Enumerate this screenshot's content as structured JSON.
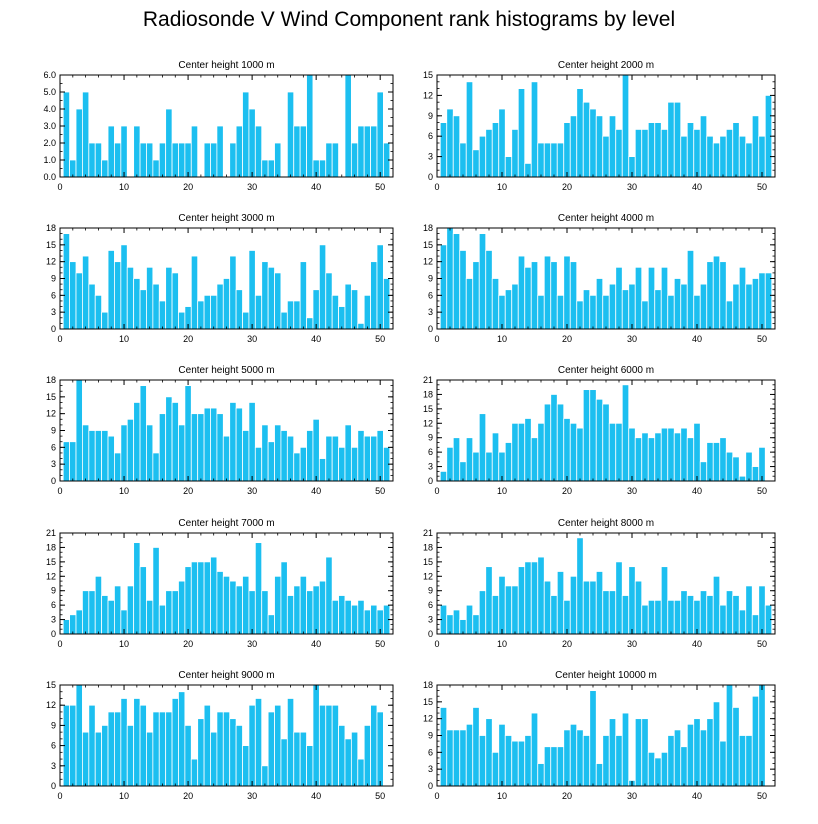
{
  "title": "Radiosonde V Wind Component rank histograms by level",
  "colors": {
    "bar": "#1CBFF0",
    "bar_edge": "#FFFFFF",
    "axis": "#000000"
  },
  "chart_data": [
    {
      "type": "bar",
      "title": "Center height 1000 m",
      "xlim": [
        0,
        52
      ],
      "ylim": [
        0,
        6
      ],
      "xticks": [
        0,
        10,
        20,
        30,
        40,
        50
      ],
      "yticks": [
        0,
        1,
        2,
        3,
        4,
        5,
        6
      ],
      "ytick_labels": [
        "0.0",
        "1.0",
        "2.0",
        "3.0",
        "4.0",
        "5.0",
        "6.0"
      ],
      "values": [
        5,
        1,
        4,
        5,
        2,
        2,
        1,
        3,
        2,
        3,
        0,
        3,
        2,
        2,
        1,
        2,
        4,
        2,
        2,
        2,
        3,
        0,
        2,
        2,
        3,
        0,
        2,
        3,
        5,
        4,
        3,
        1,
        1,
        2,
        0,
        5,
        3,
        3,
        6,
        1,
        1,
        2,
        2,
        0,
        6,
        2,
        3,
        3,
        3,
        5,
        2
      ]
    },
    {
      "type": "bar",
      "title": "Center height 2000 m",
      "xlim": [
        0,
        52
      ],
      "ylim": [
        0,
        15
      ],
      "xticks": [
        0,
        10,
        20,
        30,
        40,
        50
      ],
      "yticks": [
        0,
        3,
        6,
        9,
        12,
        15
      ],
      "ytick_labels": [
        "0",
        "3",
        "6",
        "9",
        "12",
        "15"
      ],
      "values": [
        8,
        10,
        9,
        5,
        14,
        4,
        6,
        7,
        8,
        10,
        3,
        7,
        13,
        2,
        14,
        5,
        5,
        5,
        5,
        8,
        9,
        13,
        11,
        10,
        9,
        6,
        9,
        7,
        15,
        3,
        7,
        7,
        8,
        8,
        7,
        11,
        11,
        6,
        8,
        7,
        9,
        6,
        5,
        6,
        7,
        8,
        6,
        5,
        9,
        6,
        12
      ]
    },
    {
      "type": "bar",
      "title": "Center height 3000 m",
      "xlim": [
        0,
        52
      ],
      "ylim": [
        0,
        18
      ],
      "xticks": [
        0,
        10,
        20,
        30,
        40,
        50
      ],
      "yticks": [
        0,
        3,
        6,
        9,
        12,
        15,
        18
      ],
      "ytick_labels": [
        "0",
        "3",
        "6",
        "9",
        "12",
        "15",
        "18"
      ],
      "values": [
        17,
        12,
        10,
        13,
        8,
        6,
        3,
        14,
        12,
        15,
        11,
        9,
        7,
        11,
        8,
        5,
        11,
        10,
        3,
        4,
        13,
        5,
        6,
        6,
        8,
        9,
        13,
        7,
        3,
        14,
        6,
        12,
        11,
        10,
        3,
        5,
        5,
        12,
        2,
        7,
        15,
        10,
        6,
        4,
        8,
        7,
        1,
        6,
        12,
        15,
        9
      ]
    },
    {
      "type": "bar",
      "title": "Center height 4000 m",
      "xlim": [
        0,
        52
      ],
      "ylim": [
        0,
        18
      ],
      "xticks": [
        0,
        10,
        20,
        30,
        40,
        50
      ],
      "yticks": [
        0,
        3,
        6,
        9,
        12,
        15,
        18
      ],
      "ytick_labels": [
        "0",
        "3",
        "6",
        "9",
        "12",
        "15",
        "18"
      ],
      "values": [
        15,
        18,
        17,
        14,
        9,
        12,
        17,
        14,
        9,
        6,
        7,
        8,
        13,
        11,
        12,
        6,
        13,
        12,
        6,
        13,
        12,
        5,
        7,
        6,
        9,
        6,
        8,
        11,
        7,
        8,
        11,
        5,
        11,
        7,
        11,
        6,
        9,
        8,
        14,
        6,
        8,
        12,
        13,
        12,
        5,
        8,
        11,
        8,
        9,
        10,
        10
      ]
    },
    {
      "type": "bar",
      "title": "Center height 5000 m",
      "xlim": [
        0,
        52
      ],
      "ylim": [
        0,
        18
      ],
      "xticks": [
        0,
        10,
        20,
        30,
        40,
        50
      ],
      "yticks": [
        0,
        3,
        6,
        9,
        12,
        15,
        18
      ],
      "ytick_labels": [
        "0",
        "3",
        "6",
        "9",
        "12",
        "15",
        "18"
      ],
      "values": [
        7,
        7,
        18,
        10,
        9,
        9,
        9,
        8,
        5,
        10,
        11,
        14,
        17,
        10,
        5,
        12,
        15,
        14,
        10,
        17,
        12,
        12,
        13,
        13,
        12,
        8,
        14,
        13,
        9,
        14,
        6,
        10,
        7,
        10,
        9,
        8,
        5,
        6,
        9,
        11,
        4,
        8,
        8,
        6,
        10,
        6,
        9,
        8,
        8,
        9,
        6
      ]
    },
    {
      "type": "bar",
      "title": "Center height 6000 m",
      "xlim": [
        0,
        52
      ],
      "ylim": [
        0,
        21
      ],
      "xticks": [
        0,
        10,
        20,
        30,
        40,
        50
      ],
      "yticks": [
        0,
        3,
        6,
        9,
        12,
        15,
        18,
        21
      ],
      "ytick_labels": [
        "0",
        "3",
        "6",
        "9",
        "12",
        "15",
        "18",
        "21"
      ],
      "values": [
        2,
        7,
        9,
        4,
        9,
        6,
        14,
        6,
        10,
        6,
        8,
        12,
        12,
        13,
        9,
        12,
        16,
        18,
        16,
        13,
        12,
        11,
        19,
        19,
        17,
        16,
        12,
        12,
        20,
        11,
        9,
        10,
        9,
        10,
        11,
        11,
        10,
        11,
        9,
        12,
        4,
        8,
        8,
        9,
        6,
        5,
        1,
        6,
        3,
        7,
        0
      ]
    },
    {
      "type": "bar",
      "title": "Center height 7000 m",
      "xlim": [
        0,
        52
      ],
      "ylim": [
        0,
        21
      ],
      "xticks": [
        0,
        10,
        20,
        30,
        40,
        50
      ],
      "yticks": [
        0,
        3,
        6,
        9,
        12,
        15,
        18,
        21
      ],
      "ytick_labels": [
        "0",
        "3",
        "6",
        "9",
        "12",
        "15",
        "18",
        "21"
      ],
      "values": [
        3,
        4,
        5,
        9,
        9,
        12,
        8,
        7,
        10,
        5,
        10,
        19,
        14,
        7,
        18,
        6,
        9,
        9,
        11,
        14,
        15,
        15,
        15,
        16,
        13,
        12,
        11,
        10,
        12,
        9,
        19,
        9,
        4,
        12,
        15,
        8,
        10,
        12,
        9,
        10,
        11,
        16,
        7,
        8,
        7,
        6,
        7,
        5,
        6,
        5,
        6
      ]
    },
    {
      "type": "bar",
      "title": "Center height 8000 m",
      "xlim": [
        0,
        52
      ],
      "ylim": [
        0,
        21
      ],
      "xticks": [
        0,
        10,
        20,
        30,
        40,
        50
      ],
      "yticks": [
        0,
        3,
        6,
        9,
        12,
        15,
        18,
        21
      ],
      "ytick_labels": [
        "0",
        "3",
        "6",
        "9",
        "12",
        "15",
        "18",
        "21"
      ],
      "values": [
        6,
        4,
        5,
        3,
        6,
        4,
        9,
        14,
        8,
        12,
        10,
        10,
        14,
        15,
        15,
        16,
        11,
        8,
        13,
        7,
        12,
        20,
        11,
        11,
        13,
        9,
        9,
        15,
        8,
        14,
        11,
        6,
        7,
        7,
        14,
        7,
        7,
        9,
        8,
        7,
        9,
        8,
        12,
        6,
        9,
        8,
        5,
        10,
        4,
        10,
        6
      ]
    },
    {
      "type": "bar",
      "title": "Center height 9000 m",
      "xlim": [
        0,
        52
      ],
      "ylim": [
        0,
        15
      ],
      "xticks": [
        0,
        10,
        20,
        30,
        40,
        50
      ],
      "yticks": [
        0,
        3,
        6,
        9,
        12,
        15
      ],
      "ytick_labels": [
        "0",
        "3",
        "6",
        "9",
        "12",
        "15"
      ],
      "values": [
        12,
        12,
        15,
        8,
        12,
        8,
        9,
        11,
        11,
        13,
        9,
        13,
        12,
        8,
        11,
        11,
        11,
        13,
        14,
        9,
        4,
        10,
        12,
        8,
        11,
        11,
        10,
        9,
        6,
        12,
        13,
        3,
        11,
        12,
        7,
        13,
        8,
        8,
        6,
        15,
        12,
        12,
        12,
        9,
        7,
        8,
        4,
        9,
        12,
        11,
        0
      ]
    },
    {
      "type": "bar",
      "title": "Center height 10000 m",
      "xlim": [
        0,
        52
      ],
      "ylim": [
        0,
        18
      ],
      "xticks": [
        0,
        10,
        20,
        30,
        40,
        50
      ],
      "yticks": [
        0,
        3,
        6,
        9,
        12,
        15,
        18
      ],
      "ytick_labels": [
        "0",
        "3",
        "6",
        "9",
        "12",
        "15",
        "18"
      ],
      "values": [
        14,
        10,
        10,
        10,
        11,
        14,
        9,
        12,
        6,
        11,
        9,
        8,
        8,
        9,
        13,
        4,
        7,
        7,
        7,
        10,
        11,
        10,
        9,
        17,
        4,
        9,
        12,
        9,
        13,
        1,
        12,
        12,
        6,
        5,
        6,
        9,
        10,
        7,
        11,
        12,
        10,
        12,
        15,
        8,
        18,
        14,
        9,
        9,
        16,
        18,
        0
      ]
    }
  ]
}
